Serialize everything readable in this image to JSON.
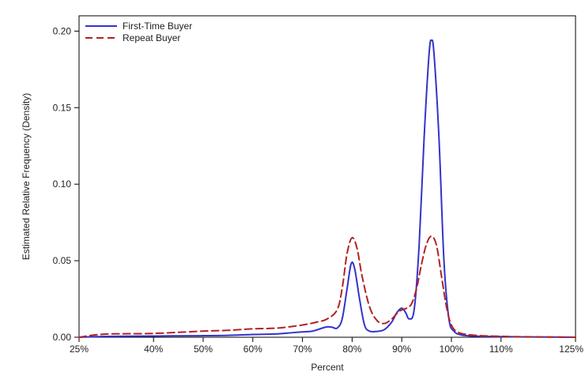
{
  "chart_data": {
    "type": "line",
    "title": "",
    "xlabel": "Percent",
    "ylabel": "Estimated Relative Frequency (Density)",
    "xlim": [
      25,
      125
    ],
    "ylim": [
      0,
      0.21
    ],
    "x_ticks": [
      {
        "value": 25,
        "label": "25%"
      },
      {
        "value": 40,
        "label": "40%"
      },
      {
        "value": 50,
        "label": "50%"
      },
      {
        "value": 60,
        "label": "60%"
      },
      {
        "value": 70,
        "label": "70%"
      },
      {
        "value": 80,
        "label": "80%"
      },
      {
        "value": 90,
        "label": "90%"
      },
      {
        "value": 100,
        "label": "100%"
      },
      {
        "value": 110,
        "label": "110%"
      },
      {
        "value": 125,
        "label": "125%"
      }
    ],
    "y_ticks": [
      {
        "value": 0,
        "label": "0.00"
      },
      {
        "value": 0.05,
        "label": "0.05"
      },
      {
        "value": 0.1,
        "label": "0.10"
      },
      {
        "value": 0.15,
        "label": "0.15"
      },
      {
        "value": 0.2,
        "label": "0.20"
      }
    ],
    "grid": false,
    "legend_position": "top-left",
    "series": [
      {
        "name": "First-Time Buyer",
        "color": "#3333cc",
        "dash": "solid",
        "points": [
          [
            25,
            0.0
          ],
          [
            30,
            0.0005
          ],
          [
            40,
            0.0008
          ],
          [
            50,
            0.001
          ],
          [
            55,
            0.0012
          ],
          [
            60,
            0.0018
          ],
          [
            65,
            0.0022
          ],
          [
            68,
            0.003
          ],
          [
            70,
            0.0035
          ],
          [
            72,
            0.004
          ],
          [
            74,
            0.006
          ],
          [
            75,
            0.0068
          ],
          [
            76,
            0.0065
          ],
          [
            77,
            0.006
          ],
          [
            78,
            0.012
          ],
          [
            79,
            0.032
          ],
          [
            79.8,
            0.048
          ],
          [
            80.5,
            0.045
          ],
          [
            81.5,
            0.025
          ],
          [
            82.5,
            0.008
          ],
          [
            83.5,
            0.004
          ],
          [
            85,
            0.0038
          ],
          [
            86.5,
            0.005
          ],
          [
            88,
            0.01
          ],
          [
            89,
            0.016
          ],
          [
            90,
            0.019
          ],
          [
            90.8,
            0.016
          ],
          [
            91.5,
            0.012
          ],
          [
            92.5,
            0.018
          ],
          [
            93.5,
            0.06
          ],
          [
            94.5,
            0.13
          ],
          [
            95.5,
            0.185
          ],
          [
            96,
            0.194
          ],
          [
            96.5,
            0.185
          ],
          [
            97.5,
            0.13
          ],
          [
            98.5,
            0.05
          ],
          [
            99.5,
            0.012
          ],
          [
            100.5,
            0.004
          ],
          [
            102,
            0.0015
          ],
          [
            105,
            0.0007
          ],
          [
            110,
            0.0004
          ],
          [
            115,
            0.0002
          ],
          [
            125,
            0.0
          ]
        ]
      },
      {
        "name": "Repeat Buyer",
        "color": "#b22222",
        "dash": "dashed",
        "points": [
          [
            25,
            0.0
          ],
          [
            30,
            0.002
          ],
          [
            40,
            0.0025
          ],
          [
            50,
            0.004
          ],
          [
            55,
            0.0045
          ],
          [
            60,
            0.0055
          ],
          [
            65,
            0.006
          ],
          [
            70,
            0.008
          ],
          [
            73,
            0.01
          ],
          [
            75,
            0.012
          ],
          [
            77,
            0.018
          ],
          [
            78,
            0.032
          ],
          [
            79,
            0.055
          ],
          [
            80,
            0.065
          ],
          [
            81,
            0.058
          ],
          [
            82,
            0.04
          ],
          [
            83.5,
            0.02
          ],
          [
            85,
            0.011
          ],
          [
            86.5,
            0.009
          ],
          [
            88,
            0.012
          ],
          [
            89.5,
            0.017
          ],
          [
            91,
            0.019
          ],
          [
            92,
            0.022
          ],
          [
            93,
            0.032
          ],
          [
            94,
            0.048
          ],
          [
            95,
            0.061
          ],
          [
            96,
            0.066
          ],
          [
            97,
            0.06
          ],
          [
            98,
            0.04
          ],
          [
            99,
            0.02
          ],
          [
            100,
            0.008
          ],
          [
            101.5,
            0.003
          ],
          [
            105,
            0.0012
          ],
          [
            110,
            0.0006
          ],
          [
            115,
            0.0003
          ],
          [
            125,
            0.0
          ]
        ]
      }
    ]
  }
}
